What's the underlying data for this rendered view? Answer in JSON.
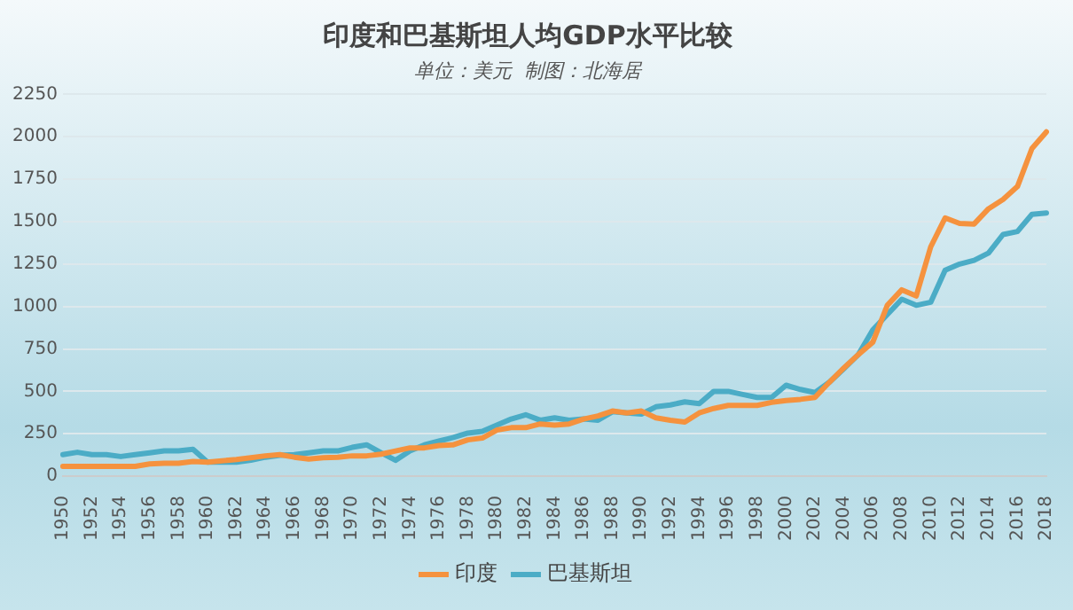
{
  "chart_data": {
    "type": "line",
    "title": "印度和巴基斯坦人均GDP水平比较",
    "subtitle": "单位：美元  制图：北海居",
    "categories": [
      "1950",
      null,
      "1952",
      null,
      "1954",
      null,
      "1956",
      null,
      "1958",
      null,
      "1960",
      null,
      "1962",
      null,
      "1964",
      null,
      "1966",
      null,
      "1968",
      null,
      "1970",
      null,
      "1972",
      null,
      "1974",
      null,
      "1976",
      null,
      "1978",
      null,
      "1980",
      null,
      "1982",
      null,
      "1984",
      null,
      "1986",
      null,
      "1988",
      null,
      "1990",
      null,
      "1992",
      null,
      "1994",
      null,
      "1996",
      null,
      "1998",
      null,
      "2000",
      null,
      "2002",
      null,
      "2004",
      null,
      "2006",
      null,
      "2008",
      null,
      "2010",
      null,
      "2012",
      null,
      "2014",
      null,
      "2016",
      null,
      "2018"
    ],
    "series": [
      {
        "name": "印度",
        "color": "#f5923e",
        "values": [
          58,
          58,
          58,
          58,
          58,
          58,
          72,
          76,
          76,
          87,
          83,
          91,
          98,
          109,
          120,
          127,
          112,
          101,
          109,
          112,
          120,
          120,
          130,
          149,
          167,
          167,
          181,
          185,
          214,
          225,
          272,
          286,
          286,
          308,
          301,
          308,
          337,
          355,
          384,
          373,
          384,
          344,
          330,
          319,
          373,
          399,
          417,
          417,
          417,
          435,
          446,
          453,
          464,
          554,
          638,
          717,
          790,
          1007,
          1098,
          1062,
          1351,
          1522,
          1489,
          1486,
          1576,
          1630,
          1707,
          1931,
          2029
        ]
      },
      {
        "name": "巴基斯坦",
        "color": "#4bacc6",
        "values": [
          127,
          141,
          127,
          127,
          116,
          127,
          138,
          149,
          149,
          159,
          83,
          83,
          83,
          94,
          112,
          123,
          127,
          138,
          149,
          149,
          170,
          185,
          138,
          94,
          149,
          185,
          207,
          228,
          254,
          264,
          301,
          337,
          362,
          330,
          344,
          330,
          337,
          330,
          380,
          373,
          366,
          409,
          420,
          438,
          428,
          500,
          500,
          482,
          464,
          464,
          536,
          511,
          493,
          554,
          634,
          717,
          862,
          953,
          1043,
          1007,
          1025,
          1214,
          1250,
          1272,
          1315,
          1424,
          1442,
          1543,
          1551
        ]
      }
    ],
    "ylim": [
      0,
      2250
    ],
    "yticks": [
      0,
      250,
      500,
      750,
      1000,
      1250,
      1500,
      1750,
      2000,
      2250
    ],
    "grid": "y",
    "legend": "bottom",
    "marker": "none",
    "line_style": "solid"
  }
}
